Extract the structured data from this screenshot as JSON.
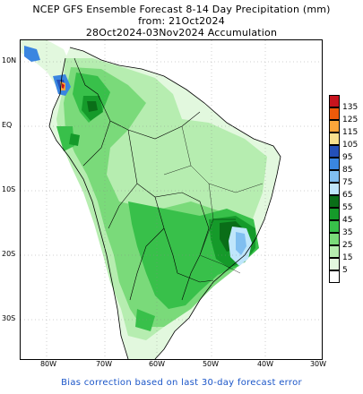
{
  "header": {
    "title": "NCEP GFS Ensemble Forecast 8-14 Day Precipitation (mm)",
    "issue": "from: 21Oct2024",
    "period": "28Oct2024-03Nov2024 Accumulation"
  },
  "axes": {
    "lat_ticks": [
      "10N",
      "EQ",
      "10S",
      "20S",
      "30S"
    ],
    "lon_ticks": [
      "80W",
      "70W",
      "60W",
      "50W",
      "40W",
      "30W"
    ]
  },
  "legend": {
    "unit": "mm",
    "levels": [
      {
        "label": "135",
        "color": "#c8141e"
      },
      {
        "label": "125",
        "color": "#ee5a0a"
      },
      {
        "label": "115",
        "color": "#fca63a"
      },
      {
        "label": "105",
        "color": "#f8e08e"
      },
      {
        "label": "95",
        "color": "#2450b8"
      },
      {
        "label": "85",
        "color": "#3a86e0"
      },
      {
        "label": "75",
        "color": "#80bff0"
      },
      {
        "label": "65",
        "color": "#bfe6fb"
      },
      {
        "label": "55",
        "color": "#0a6e18"
      },
      {
        "label": "45",
        "color": "#159a2a"
      },
      {
        "label": "35",
        "color": "#38c04a"
      },
      {
        "label": "25",
        "color": "#7ada7a"
      },
      {
        "label": "15",
        "color": "#b6edb0"
      },
      {
        "label": "5",
        "color": "#e2f8de"
      },
      {
        "label": "",
        "color": "#ffffff"
      }
    ]
  },
  "footer": {
    "note": "Bias correction based on last 30-day forecast error"
  }
}
